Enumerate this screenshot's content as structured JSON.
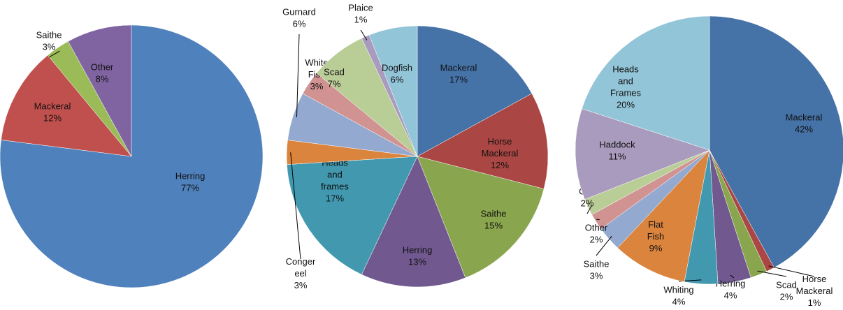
{
  "chart_data": [
    {
      "type": "pie",
      "categories": [
        "Herring",
        "Mackeral",
        "Saithe",
        "Other"
      ],
      "values": [
        77,
        12,
        3,
        8
      ],
      "value_labels": [
        "77%",
        "12%",
        "3%",
        "8%"
      ],
      "colors": [
        "#4f81bd",
        "#c0504d",
        "#9bbb59",
        "#8064a2"
      ]
    },
    {
      "type": "pie",
      "categories": [
        "Mackeral",
        "Horse Mackeral",
        "Saithe",
        "Herring",
        "Heads and frames",
        "Conger eel",
        "Gurnard",
        "White Fish",
        "Scad",
        "Plaice",
        "Dogfish"
      ],
      "values": [
        17,
        12,
        15,
        13,
        17,
        3,
        6,
        3,
        7,
        1,
        6
      ],
      "value_labels": [
        "17%",
        "12%",
        "15%",
        "13%",
        "17%",
        "3%",
        "6%",
        "3%",
        "7%",
        "1%",
        "6%"
      ],
      "colors": [
        "#4572a7",
        "#aa4643",
        "#89a54e",
        "#71588f",
        "#4198af",
        "#db843d",
        "#93a9cf",
        "#d19392",
        "#b9cd96",
        "#a99bbd",
        "#92c5d8"
      ]
    },
    {
      "type": "pie",
      "categories": [
        "Mackeral",
        "Horse Mackeral",
        "Scad",
        "Herring",
        "Whiting",
        "Flat Fish",
        "Saithe",
        "Other",
        "Cod",
        "Haddock",
        "Heads and Frames"
      ],
      "values": [
        42,
        1,
        2,
        4,
        4,
        9,
        3,
        2,
        2,
        11,
        20
      ],
      "value_labels": [
        "42%",
        "1%",
        "2%",
        "4%",
        "4%",
        "9%",
        "3%",
        "2%",
        "2%",
        "11%",
        "20%"
      ],
      "colors": [
        "#4572a7",
        "#aa4643",
        "#89a54e",
        "#71588f",
        "#4198af",
        "#db843d",
        "#93a9cf",
        "#d19392",
        "#b9cd96",
        "#a99bbd",
        "#92c5d8"
      ]
    }
  ]
}
